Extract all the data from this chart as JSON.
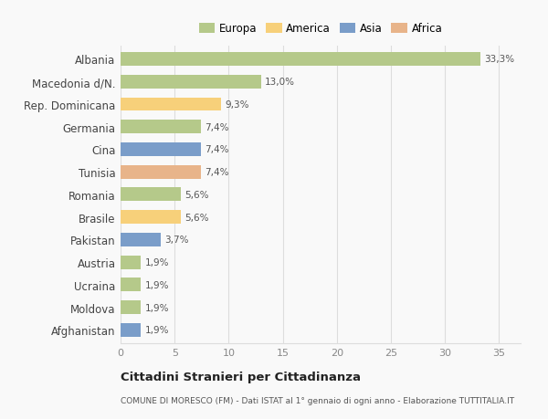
{
  "countries": [
    "Albania",
    "Macedonia d/N.",
    "Rep. Dominicana",
    "Germania",
    "Cina",
    "Tunisia",
    "Romania",
    "Brasile",
    "Pakistan",
    "Austria",
    "Ucraina",
    "Moldova",
    "Afghanistan"
  ],
  "values": [
    33.3,
    13.0,
    9.3,
    7.4,
    7.4,
    7.4,
    5.6,
    5.6,
    3.7,
    1.9,
    1.9,
    1.9,
    1.9
  ],
  "labels": [
    "33,3%",
    "13,0%",
    "9,3%",
    "7,4%",
    "7,4%",
    "7,4%",
    "5,6%",
    "5,6%",
    "3,7%",
    "1,9%",
    "1,9%",
    "1,9%",
    "1,9%"
  ],
  "continents": [
    "Europa",
    "Europa",
    "America",
    "Europa",
    "Asia",
    "Africa",
    "Europa",
    "America",
    "Asia",
    "Europa",
    "Europa",
    "Europa",
    "Asia"
  ],
  "colors": {
    "Europa": "#b5c98a",
    "America": "#f7d07a",
    "Asia": "#7a9dc9",
    "Africa": "#e8b48a"
  },
  "legend_order": [
    "Europa",
    "America",
    "Asia",
    "Africa"
  ],
  "title": "Cittadini Stranieri per Cittadinanza",
  "subtitle": "COMUNE DI MORESCO (FM) - Dati ISTAT al 1° gennaio di ogni anno - Elaborazione TUTTITALIA.IT",
  "xlim": [
    0,
    37
  ],
  "xticks": [
    0,
    5,
    10,
    15,
    20,
    25,
    30,
    35
  ],
  "background_color": "#f9f9f9",
  "bar_alpha": 1.0,
  "grid_color": "#dddddd",
  "bar_height": 0.6
}
